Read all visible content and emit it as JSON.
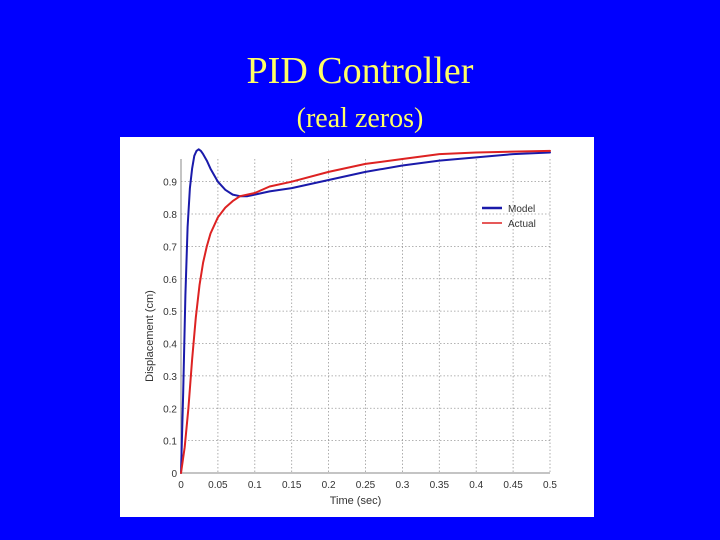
{
  "slide": {
    "title_line_1": "PID Controller",
    "title_line_2": "(real zeros)",
    "background_color": "#0000ff",
    "title_color": "#ffff66"
  },
  "chart_data": {
    "type": "line",
    "title": "",
    "xlabel": "Time (sec)",
    "ylabel": "Displacement (cm)",
    "xlim": [
      0,
      0.5
    ],
    "ylim": [
      0,
      0.97
    ],
    "x_ticks": [
      0,
      0.05,
      0.1,
      0.15,
      0.2,
      0.25,
      0.3,
      0.35,
      0.4,
      0.45,
      0.5
    ],
    "x_tick_labels": [
      "0",
      "0.05",
      "0.1",
      "0.15",
      "0.2",
      "0.25",
      "0.3",
      "0.35",
      "0.4",
      "0.45",
      "0.5"
    ],
    "y_ticks": [
      0,
      0.1,
      0.2,
      0.3,
      0.4,
      0.5,
      0.6,
      0.7,
      0.8,
      0.9
    ],
    "y_tick_labels": [
      "0",
      "0.1",
      "0.2",
      "0.3",
      "0.4",
      "0.5",
      "0.6",
      "0.7",
      "0.8",
      "0.9"
    ],
    "grid": true,
    "legend_position": "top-right",
    "series": [
      {
        "name": "Model",
        "color": "#1a1aaa",
        "x": [
          0,
          0.003,
          0.006,
          0.009,
          0.012,
          0.015,
          0.018,
          0.021,
          0.024,
          0.027,
          0.03,
          0.035,
          0.04,
          0.045,
          0.05,
          0.06,
          0.07,
          0.08,
          0.09,
          0.1,
          0.11,
          0.12,
          0.15,
          0.2,
          0.25,
          0.3,
          0.35,
          0.4,
          0.45,
          0.5
        ],
        "y": [
          0,
          0.25,
          0.55,
          0.76,
          0.88,
          0.94,
          0.98,
          0.995,
          1.0,
          0.995,
          0.985,
          0.965,
          0.94,
          0.92,
          0.9,
          0.875,
          0.86,
          0.855,
          0.855,
          0.86,
          0.865,
          0.87,
          0.88,
          0.905,
          0.93,
          0.95,
          0.965,
          0.975,
          0.985,
          0.99
        ]
      },
      {
        "name": "Actual",
        "color": "#dd2222",
        "x": [
          0,
          0.005,
          0.01,
          0.015,
          0.02,
          0.025,
          0.03,
          0.035,
          0.04,
          0.05,
          0.06,
          0.07,
          0.08,
          0.09,
          0.1,
          0.12,
          0.15,
          0.2,
          0.25,
          0.3,
          0.35,
          0.4,
          0.45,
          0.5
        ],
        "y": [
          0,
          0.08,
          0.2,
          0.35,
          0.48,
          0.58,
          0.65,
          0.7,
          0.74,
          0.79,
          0.82,
          0.84,
          0.855,
          0.86,
          0.865,
          0.885,
          0.9,
          0.93,
          0.955,
          0.97,
          0.985,
          0.99,
          0.993,
          0.995
        ]
      }
    ]
  }
}
